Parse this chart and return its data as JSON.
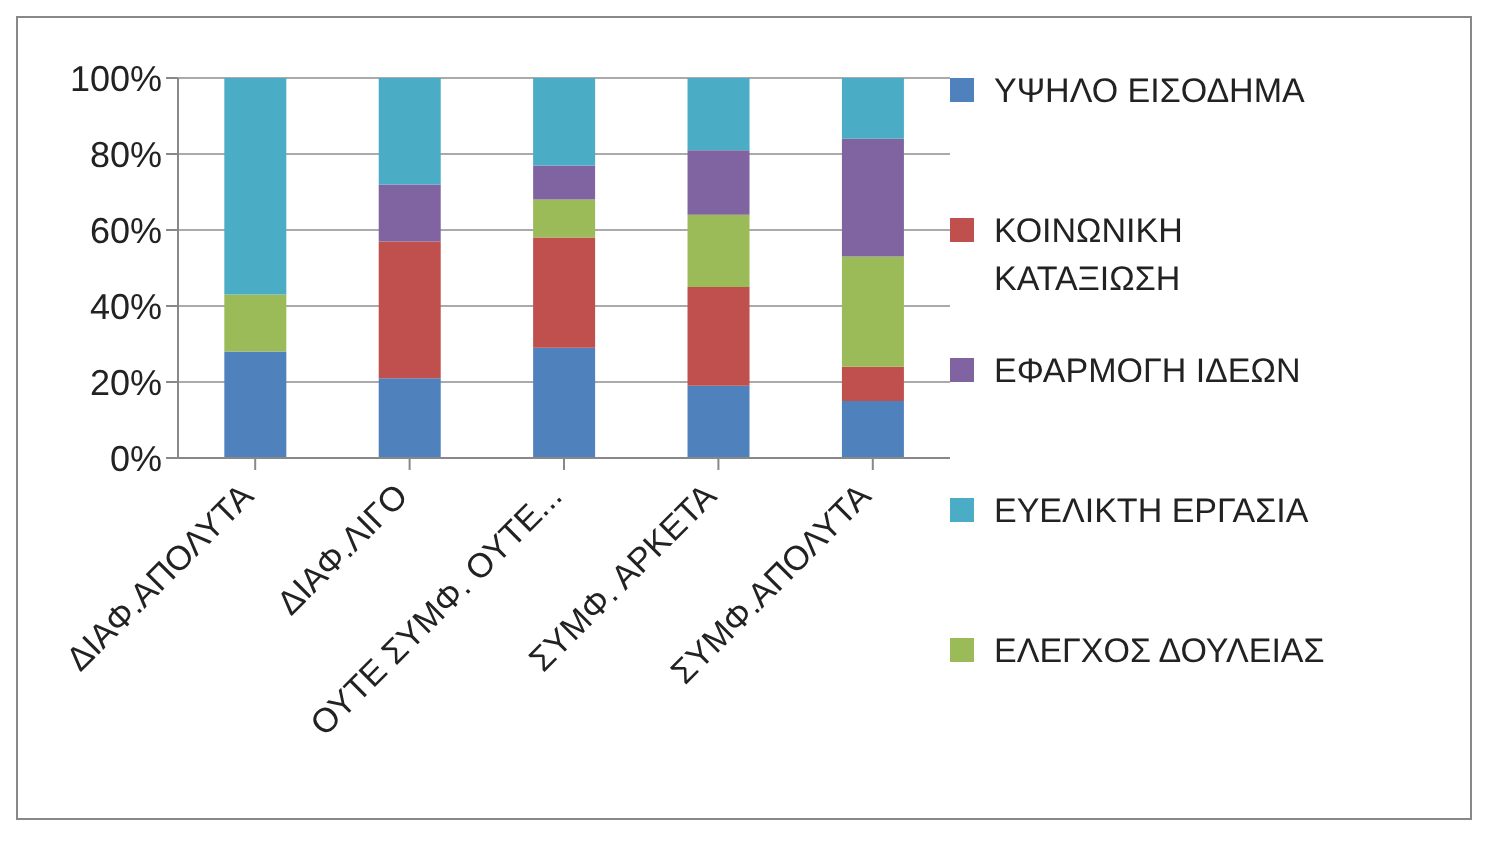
{
  "chart_data": {
    "type": "bar",
    "stacked": true,
    "categories": [
      "ΔΙΑΦ.ΑΠΟΛΥΤΑ",
      "ΔΙΑΦ.ΛΙΓΟ",
      "ΟΥΤΕ ΣΥΜΦ. ΟΥΤΕ...",
      "ΣΥΜΦ. ΑΡΚΕΤΑ",
      "ΣΥΜΦ.ΑΠΟΛΥΤΑ"
    ],
    "series": [
      {
        "name": "ΥΨΗΛΟ ΕΙΣΟΔΗΜΑ",
        "color": "#4f81bd",
        "values": [
          28,
          21,
          29,
          19,
          15
        ]
      },
      {
        "name": "ΚΟΙΝΩΝΙΚΗ ΚΑΤΑΞΙΩΣΗ",
        "color": "#c0504d",
        "values": [
          0,
          36,
          29,
          26,
          9
        ]
      },
      {
        "name": "ΕΛΕΓΧΟΣ ΔΟΥΛΕΙΑΣ",
        "color": "#9bbb59",
        "values": [
          15,
          0,
          10,
          19,
          29
        ]
      },
      {
        "name": "ΕΦΑΡΜΟΓΗ ΙΔΕΩΝ",
        "color": "#8064a2",
        "values": [
          0,
          15,
          9,
          17,
          31
        ]
      },
      {
        "name": "ΕΥΕΛΙΚΤΗ ΕΡΓΑΣΙΑ",
        "color": "#4bacc6",
        "values": [
          57,
          28,
          23,
          19,
          16
        ]
      }
    ],
    "ylim": [
      0,
      100
    ],
    "yticks": [
      {
        "value": 0,
        "label": "0%"
      },
      {
        "value": 20,
        "label": "20%"
      },
      {
        "value": 40,
        "label": "40%"
      },
      {
        "value": 60,
        "label": "60%"
      },
      {
        "value": 80,
        "label": "80%"
      },
      {
        "value": 100,
        "label": "100%"
      }
    ],
    "grid": "y",
    "legend": "right"
  }
}
